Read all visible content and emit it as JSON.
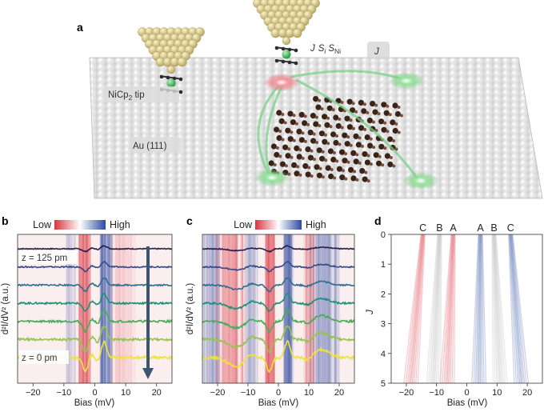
{
  "panel_a": {
    "label": "a",
    "tip_label": "NiCp",
    "tip_sub": "2",
    "tip_suffix": " tip",
    "surface_label": "Au (111)",
    "coupling_J": "J",
    "coupling_S": "S",
    "coupling_i": "i",
    "coupling_S2": "S",
    "coupling_Ni": "Ni",
    "j_label": "J"
  },
  "panel_b": {
    "label": "b",
    "legend_low": "Low",
    "legend_high": "High",
    "z_top": "z = 125 pm",
    "z_bottom": "z = 0 pm",
    "ylabel": "d²I/dV² (a.u.)",
    "xlabel": "Bias (mV)",
    "xticks": [
      "−20",
      "−10",
      "0",
      "10",
      "20"
    ]
  },
  "panel_c": {
    "label": "c",
    "legend_low": "Low",
    "legend_high": "High",
    "ylabel": "d²I/dV² (a.u.)",
    "xlabel": "Bias (mV)",
    "xticks": [
      "−20",
      "−10",
      "0",
      "10",
      "20"
    ]
  },
  "panel_d": {
    "label": "d",
    "top_labels": [
      "C",
      "B",
      "A",
      "A",
      "B",
      "C"
    ],
    "ylabel": "J",
    "xlabel": "Bias (mV)",
    "yticks": [
      "0",
      "1",
      "2",
      "3",
      "4",
      "5"
    ],
    "xticks": [
      "−20",
      "−10",
      "0",
      "10",
      "20"
    ]
  },
  "colors": {
    "red": "#d9333f",
    "blue": "#2c4aa0",
    "grey": "#a6a6a6",
    "gold": "#d7c98a",
    "green": "#58c06a"
  },
  "chart_data": [
    {
      "type": "line",
      "panel": "b",
      "xlabel": "Bias (mV)",
      "ylabel": "d²I/dV² (a.u.)",
      "xlim": [
        -25,
        25
      ],
      "xticks": [
        -20,
        -10,
        0,
        10,
        20
      ],
      "series_colors": [
        "#2b1f4a",
        "#3a4a85",
        "#2f6e8e",
        "#1f9078",
        "#49ab5a",
        "#93c451",
        "#efe23a"
      ]
    },
    {
      "type": "line",
      "panel": "c",
      "xlabel": "Bias (mV)",
      "ylabel": "d²I/dV² (a.u.)",
      "xlim": [
        -25,
        25
      ],
      "xticks": [
        -20,
        -10,
        0,
        10,
        20
      ],
      "series_colors": [
        "#2b1f4a",
        "#3a4a85",
        "#2f6e8e",
        "#1f9078",
        "#49ab5a",
        "#93c451",
        "#efe23a"
      ]
    },
    {
      "type": "line",
      "panel": "d",
      "xlabel": "Bias (mV)",
      "ylabel": "J",
      "xlim": [
        -25,
        25
      ],
      "ylim": [
        0,
        5
      ],
      "xticks": [
        -20,
        -10,
        0,
        10,
        20
      ],
      "yticks": [
        0,
        1,
        2,
        3,
        4,
        5
      ],
      "labels": [
        "C",
        "B",
        "A",
        "A",
        "B",
        "C"
      ],
      "bands": [
        {
          "label": "C",
          "color": "#d9333f",
          "bias_at_J0": -14.5,
          "bias_at_J5": -18.5
        },
        {
          "label": "B",
          "color": "#a6a6a6",
          "bias_at_J0": -9.0,
          "bias_at_J5": -11.0
        },
        {
          "label": "A",
          "color": "#d9333f",
          "bias_at_J0": -4.5,
          "bias_at_J5": -6.5
        },
        {
          "label": "A",
          "color": "#2c4aa0",
          "bias_at_J0": 4.5,
          "bias_at_J5": 4.0
        },
        {
          "label": "B",
          "color": "#a6a6a6",
          "bias_at_J0": 9.0,
          "bias_at_J5": 11.0
        },
        {
          "label": "C",
          "color": "#2c4aa0",
          "bias_at_J0": 14.5,
          "bias_at_J5": 18.0
        }
      ]
    }
  ]
}
